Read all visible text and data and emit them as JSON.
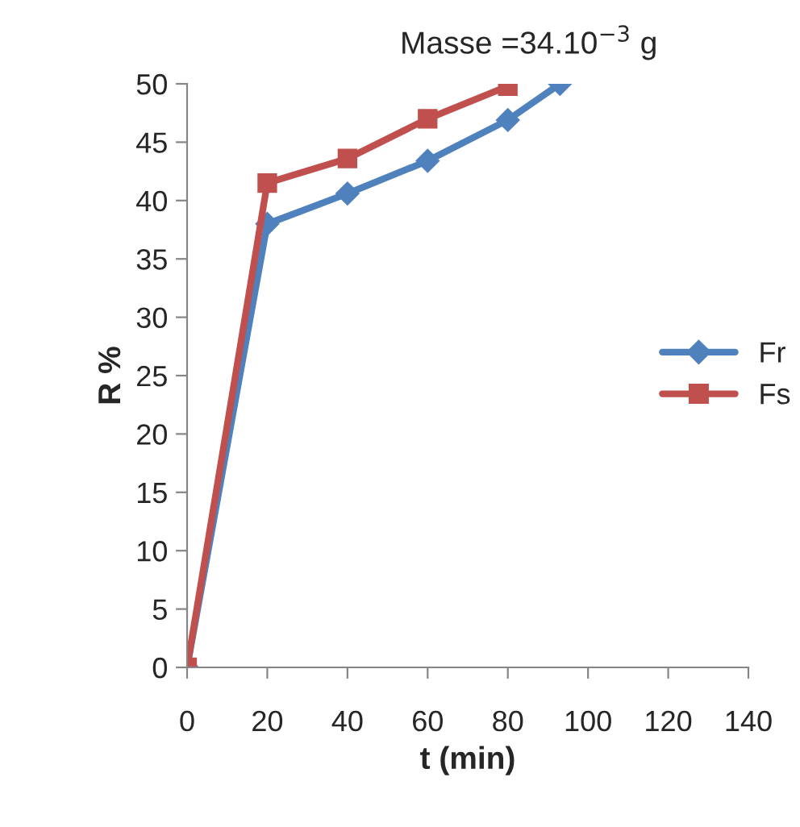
{
  "chart_data": {
    "type": "line",
    "xlabel": "t (min)",
    "ylabel": "R %",
    "annotations": [
      "Masse =34.10$^{−3}$ g"
    ],
    "series": [
      {
        "name": "Fr",
        "color": "#4f81bd",
        "marker": "diamond",
        "x": [
          0,
          20,
          40,
          60,
          80,
          93
        ],
        "values": [
          0,
          38,
          40.6,
          43.4,
          46.9,
          50
        ]
      },
      {
        "name": "Fs",
        "color": "#c0504d",
        "marker": "square",
        "x": [
          0,
          20,
          40,
          60,
          80
        ],
        "values": [
          0,
          41.5,
          43.6,
          47,
          49.8
        ]
      }
    ],
    "xlim": [
      0,
      140
    ],
    "xticks": [
      0,
      20,
      40,
      60,
      80,
      100,
      120,
      140
    ],
    "ylim": [
      0,
      50
    ],
    "yticks": [
      0,
      5,
      10,
      15,
      20,
      25,
      30,
      35,
      40,
      45,
      50
    ],
    "grid": false,
    "legend": "right",
    "line_style": "solid"
  }
}
